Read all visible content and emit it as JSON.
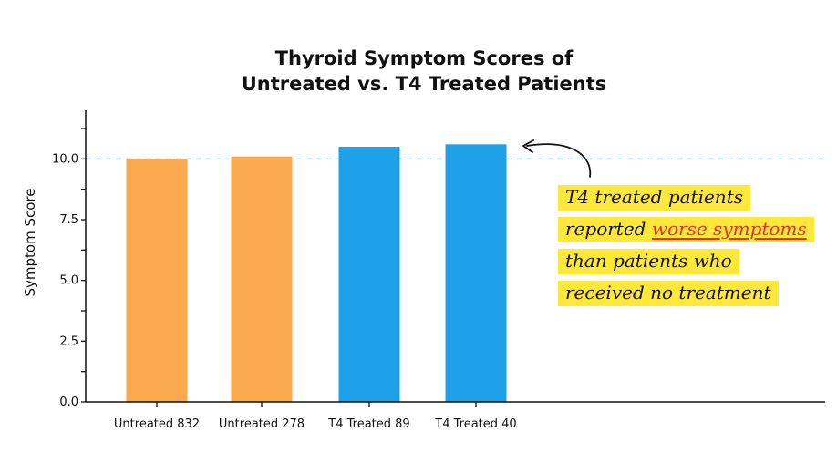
{
  "chart_data": {
    "type": "bar",
    "title_lines": [
      "Thyroid Symptom Scores of",
      "Untreated vs. T4 Treated Patients"
    ],
    "xlabel": "",
    "ylabel": "Symptom Score",
    "categories": [
      "Untreated 832",
      "Untreated 278",
      "T4 Treated 89",
      "T4 Treated 40"
    ],
    "values": [
      10.0,
      10.1,
      10.5,
      10.6
    ],
    "bar_colors": [
      "#fba94e",
      "#fba94e",
      "#1fa1ea",
      "#1fa1ea"
    ],
    "ylim": [
      0,
      12
    ],
    "yticks": [
      0.0,
      2.5,
      5.0,
      7.5,
      10.0
    ],
    "ytick_labels": [
      "0.0",
      "2.5",
      "5.0",
      "7.5",
      "10.0"
    ],
    "reference_line": {
      "y": 10.0,
      "color": "#9fd6ea",
      "style": "dashed"
    },
    "grid": false,
    "annotation": {
      "lines": [
        {
          "before": "T4 treated patients",
          "highlight": "",
          "after": ""
        },
        {
          "before": "reported ",
          "highlight": "worse symptoms",
          "after": ""
        },
        {
          "before": "than patients who",
          "highlight": "",
          "after": ""
        },
        {
          "before": "received no treatment",
          "highlight": "",
          "after": ""
        }
      ],
      "highlight_color": "#e0302b",
      "box_color": "#ffe83a"
    }
  }
}
